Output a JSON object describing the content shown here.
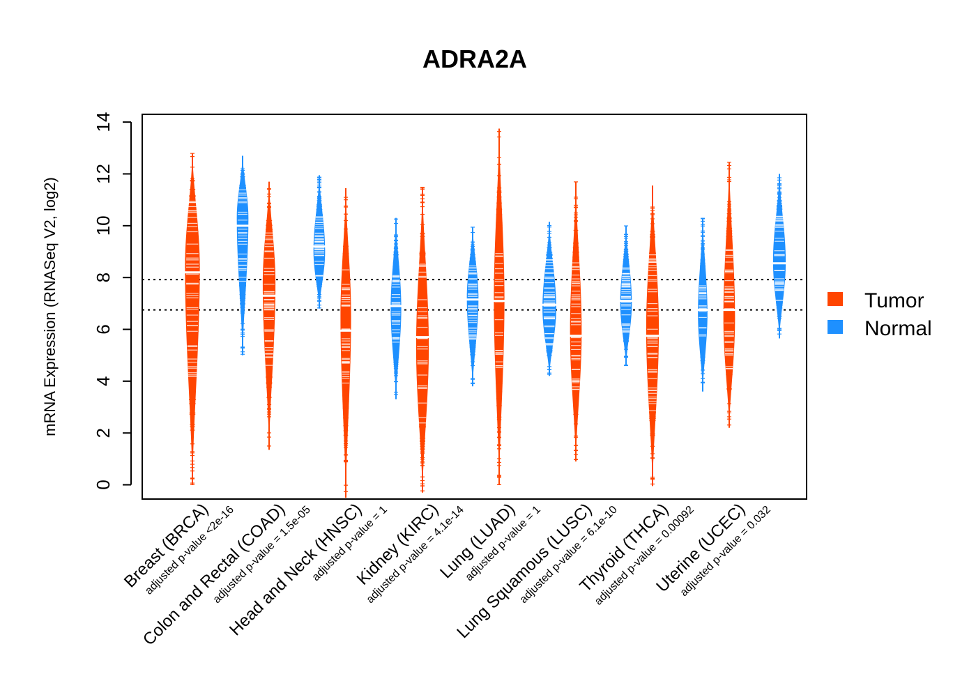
{
  "chart_data": {
    "type": "violin",
    "title": "ADRA2A",
    "ylabel": "mRNA Expression (RNASeq V2, log2)",
    "xlabel": "",
    "ylim": [
      -0.55,
      14.3
    ],
    "yticks": [
      0,
      2,
      4,
      6,
      8,
      10,
      12,
      14
    ],
    "reference_lines": [
      7.92,
      6.75
    ],
    "legend": {
      "position": "right",
      "entries": [
        "Tumor",
        "Normal"
      ]
    },
    "colors": {
      "Tumor": "#FF4500",
      "Normal": "#1E90FF",
      "median": "#ffffff",
      "frame": "#000000"
    },
    "categories": [
      {
        "name": "Breast (BRCA)",
        "pvalue_label": "adjusted p-value <2e-16",
        "tumor": {
          "median": 8.2,
          "min": 0.0,
          "max": 12.8,
          "mode": 8.4,
          "half_width": 0.28
        },
        "normal": {
          "median": 10.0,
          "min": 5.0,
          "max": 12.7,
          "mode": 10.3,
          "half_width": 0.22
        }
      },
      {
        "name": "Colon and Rectal (COAD)",
        "pvalue_label": "adjusted p-value = 1.5e-05",
        "tumor": {
          "median": 7.3,
          "min": 1.35,
          "max": 11.7,
          "mode": 7.8,
          "half_width": 0.24
        },
        "normal": {
          "median": 9.2,
          "min": 6.8,
          "max": 11.95,
          "mode": 9.0,
          "half_width": 0.22
        }
      },
      {
        "name": "Head and Neck (HNSC)",
        "pvalue_label": "adjusted p-value = 1",
        "tumor": {
          "median": 5.95,
          "min": -0.5,
          "max": 11.45,
          "mode": 6.5,
          "half_width": 0.2
        },
        "normal": {
          "median": 6.9,
          "min": 3.3,
          "max": 10.3,
          "mode": 6.8,
          "half_width": 0.2
        }
      },
      {
        "name": "Kidney (KIRC)",
        "pvalue_label": "adjusted p-value = 4.1e-14",
        "tumor": {
          "median": 5.7,
          "min": -0.3,
          "max": 11.5,
          "mode": 5.3,
          "half_width": 0.24
        },
        "normal": {
          "median": 7.15,
          "min": 3.8,
          "max": 9.95,
          "mode": 7.2,
          "half_width": 0.22
        }
      },
      {
        "name": "Lung (LUAD)",
        "pvalue_label": "adjusted p-value = 1",
        "tumor": {
          "median": 7.1,
          "min": 0.0,
          "max": 13.75,
          "mode": 7.1,
          "half_width": 0.2
        },
        "normal": {
          "median": 6.95,
          "min": 4.2,
          "max": 10.15,
          "mode": 6.8,
          "half_width": 0.26
        }
      },
      {
        "name": "Lung Squamous (LUSC)",
        "pvalue_label": "adjusted p-value = 6.1e-10",
        "tumor": {
          "median": 5.75,
          "min": 0.9,
          "max": 11.7,
          "mode": 5.9,
          "half_width": 0.22
        },
        "normal": {
          "median": 7.1,
          "min": 4.6,
          "max": 10.0,
          "mode": 7.0,
          "half_width": 0.22
        }
      },
      {
        "name": "Thyroid (THCA)",
        "pvalue_label": "adjusted p-value = 0.00092",
        "tumor": {
          "median": 5.75,
          "min": -0.05,
          "max": 11.55,
          "mode": 6.0,
          "half_width": 0.24
        },
        "normal": {
          "median": 6.75,
          "min": 3.6,
          "max": 10.3,
          "mode": 6.6,
          "half_width": 0.18
        }
      },
      {
        "name": "Uterine (UCEC)",
        "pvalue_label": "adjusted p-value = 0.032",
        "tumor": {
          "median": 6.75,
          "min": 2.2,
          "max": 12.45,
          "mode": 6.4,
          "half_width": 0.22
        },
        "normal": {
          "median": 8.55,
          "min": 5.65,
          "max": 12.0,
          "mode": 8.6,
          "half_width": 0.24
        }
      }
    ]
  }
}
